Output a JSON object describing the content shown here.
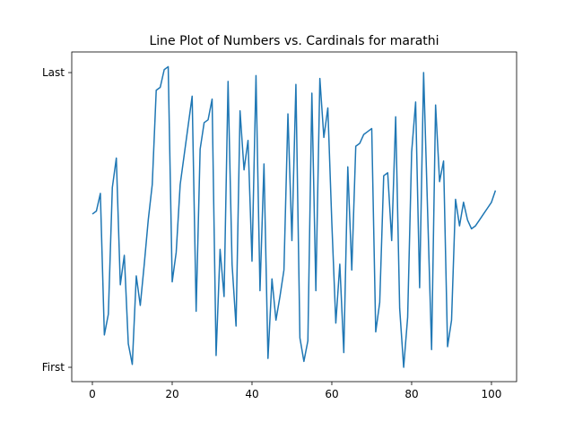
{
  "chart_data": {
    "type": "line",
    "title": "Line Plot of Numbers vs. Cardinals for marathi",
    "x": [
      0,
      1,
      2,
      3,
      4,
      5,
      6,
      7,
      8,
      9,
      10,
      11,
      12,
      13,
      14,
      15,
      16,
      17,
      18,
      19,
      20,
      21,
      22,
      23,
      24,
      25,
      26,
      27,
      28,
      29,
      30,
      31,
      32,
      33,
      34,
      35,
      36,
      37,
      38,
      39,
      40,
      41,
      42,
      43,
      44,
      45,
      46,
      47,
      48,
      49,
      50,
      51,
      52,
      53,
      54,
      55,
      56,
      57,
      58,
      59,
      60,
      61,
      62,
      63,
      64,
      65,
      66,
      67,
      68,
      69,
      70,
      71,
      72,
      73,
      74,
      75,
      76,
      77,
      78,
      79,
      80,
      81,
      82,
      83,
      84,
      85,
      86,
      87,
      88,
      89,
      90,
      91,
      92,
      93,
      94,
      95,
      96,
      97,
      98,
      99,
      100,
      101
    ],
    "series": [
      {
        "color": "#1f77b4",
        "values": [
          0.52,
          0.53,
          0.59,
          0.11,
          0.18,
          0.61,
          0.71,
          0.28,
          0.38,
          0.08,
          0.01,
          0.31,
          0.21,
          0.35,
          0.5,
          0.62,
          0.94,
          0.95,
          1.01,
          1.02,
          0.29,
          0.39,
          0.62,
          0.72,
          0.82,
          0.92,
          0.19,
          0.74,
          0.83,
          0.84,
          0.91,
          0.04,
          0.4,
          0.24,
          0.97,
          0.35,
          0.14,
          0.87,
          0.67,
          0.77,
          0.36,
          0.99,
          0.26,
          0.69,
          0.03,
          0.3,
          0.16,
          0.24,
          0.33,
          0.86,
          0.43,
          0.96,
          0.1,
          0.02,
          0.09,
          0.93,
          0.26,
          0.98,
          0.78,
          0.88,
          0.49,
          0.15,
          0.35,
          0.05,
          0.68,
          0.33,
          0.75,
          0.76,
          0.79,
          0.8,
          0.81,
          0.12,
          0.22,
          0.65,
          0.66,
          0.43,
          0.85,
          0.2,
          0.0,
          0.17,
          0.73,
          0.9,
          0.27,
          1.0,
          0.53,
          0.06,
          0.89,
          0.63,
          0.7,
          0.07,
          0.16,
          0.57,
          0.48,
          0.56,
          0.5,
          0.47,
          0.48,
          0.5,
          0.52,
          0.54,
          0.56,
          0.6
        ]
      }
    ],
    "xlim": [
      -5.17,
      106.3
    ],
    "xticks": [
      0,
      20,
      40,
      60,
      80,
      100
    ],
    "ylim": [
      -0.0486,
      1.07
    ],
    "yticks": [
      {
        "value": 0,
        "label": "First"
      },
      {
        "value": 1,
        "label": "Last"
      }
    ]
  }
}
